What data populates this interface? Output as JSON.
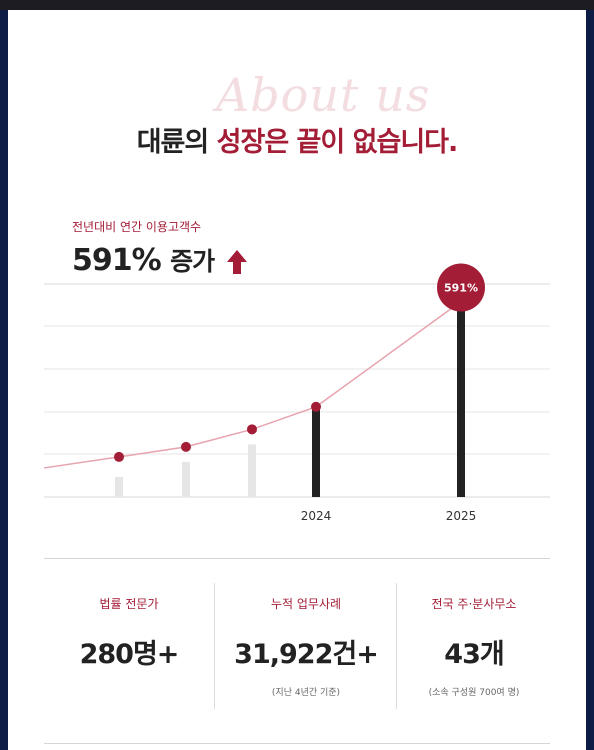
{
  "header": {
    "script_text": "About us",
    "headline_plain": "대륜의 ",
    "headline_highlight": "성장은 끝이 없습니다."
  },
  "growth": {
    "label": "전년대비 연간 이용고객수",
    "value": "591%",
    "unit": "증가",
    "arrow": "up-arrow-icon"
  },
  "chart_data": {
    "type": "line",
    "x": [
      "",
      "",
      "",
      "2024",
      "2025"
    ],
    "y": [
      1.6,
      2.0,
      2.7,
      3.6,
      7.8
    ],
    "bars": [
      0.8,
      1.4,
      2.1,
      3.6,
      7.8
    ],
    "tick_labels": [
      "2024",
      "2025"
    ],
    "callout": "591%",
    "colors": {
      "line": "#e7a3ae",
      "point": "#a31d36",
      "bar_light": "#e6e6e6",
      "bar_dark": "#222222",
      "callout": "#a31d36"
    }
  },
  "stats": [
    {
      "label": "법률 전문가",
      "value": "280명+",
      "note": ""
    },
    {
      "label": "누적 업무사례",
      "value": "31,922건+",
      "note": "(지난 4년간 기준)"
    },
    {
      "label": "전국 주·분사무소",
      "value": "43개",
      "note": "(소속 구성원 700여 명)"
    }
  ],
  "colors": {
    "accent": "#a31d36",
    "frame": "#0d1d45"
  }
}
